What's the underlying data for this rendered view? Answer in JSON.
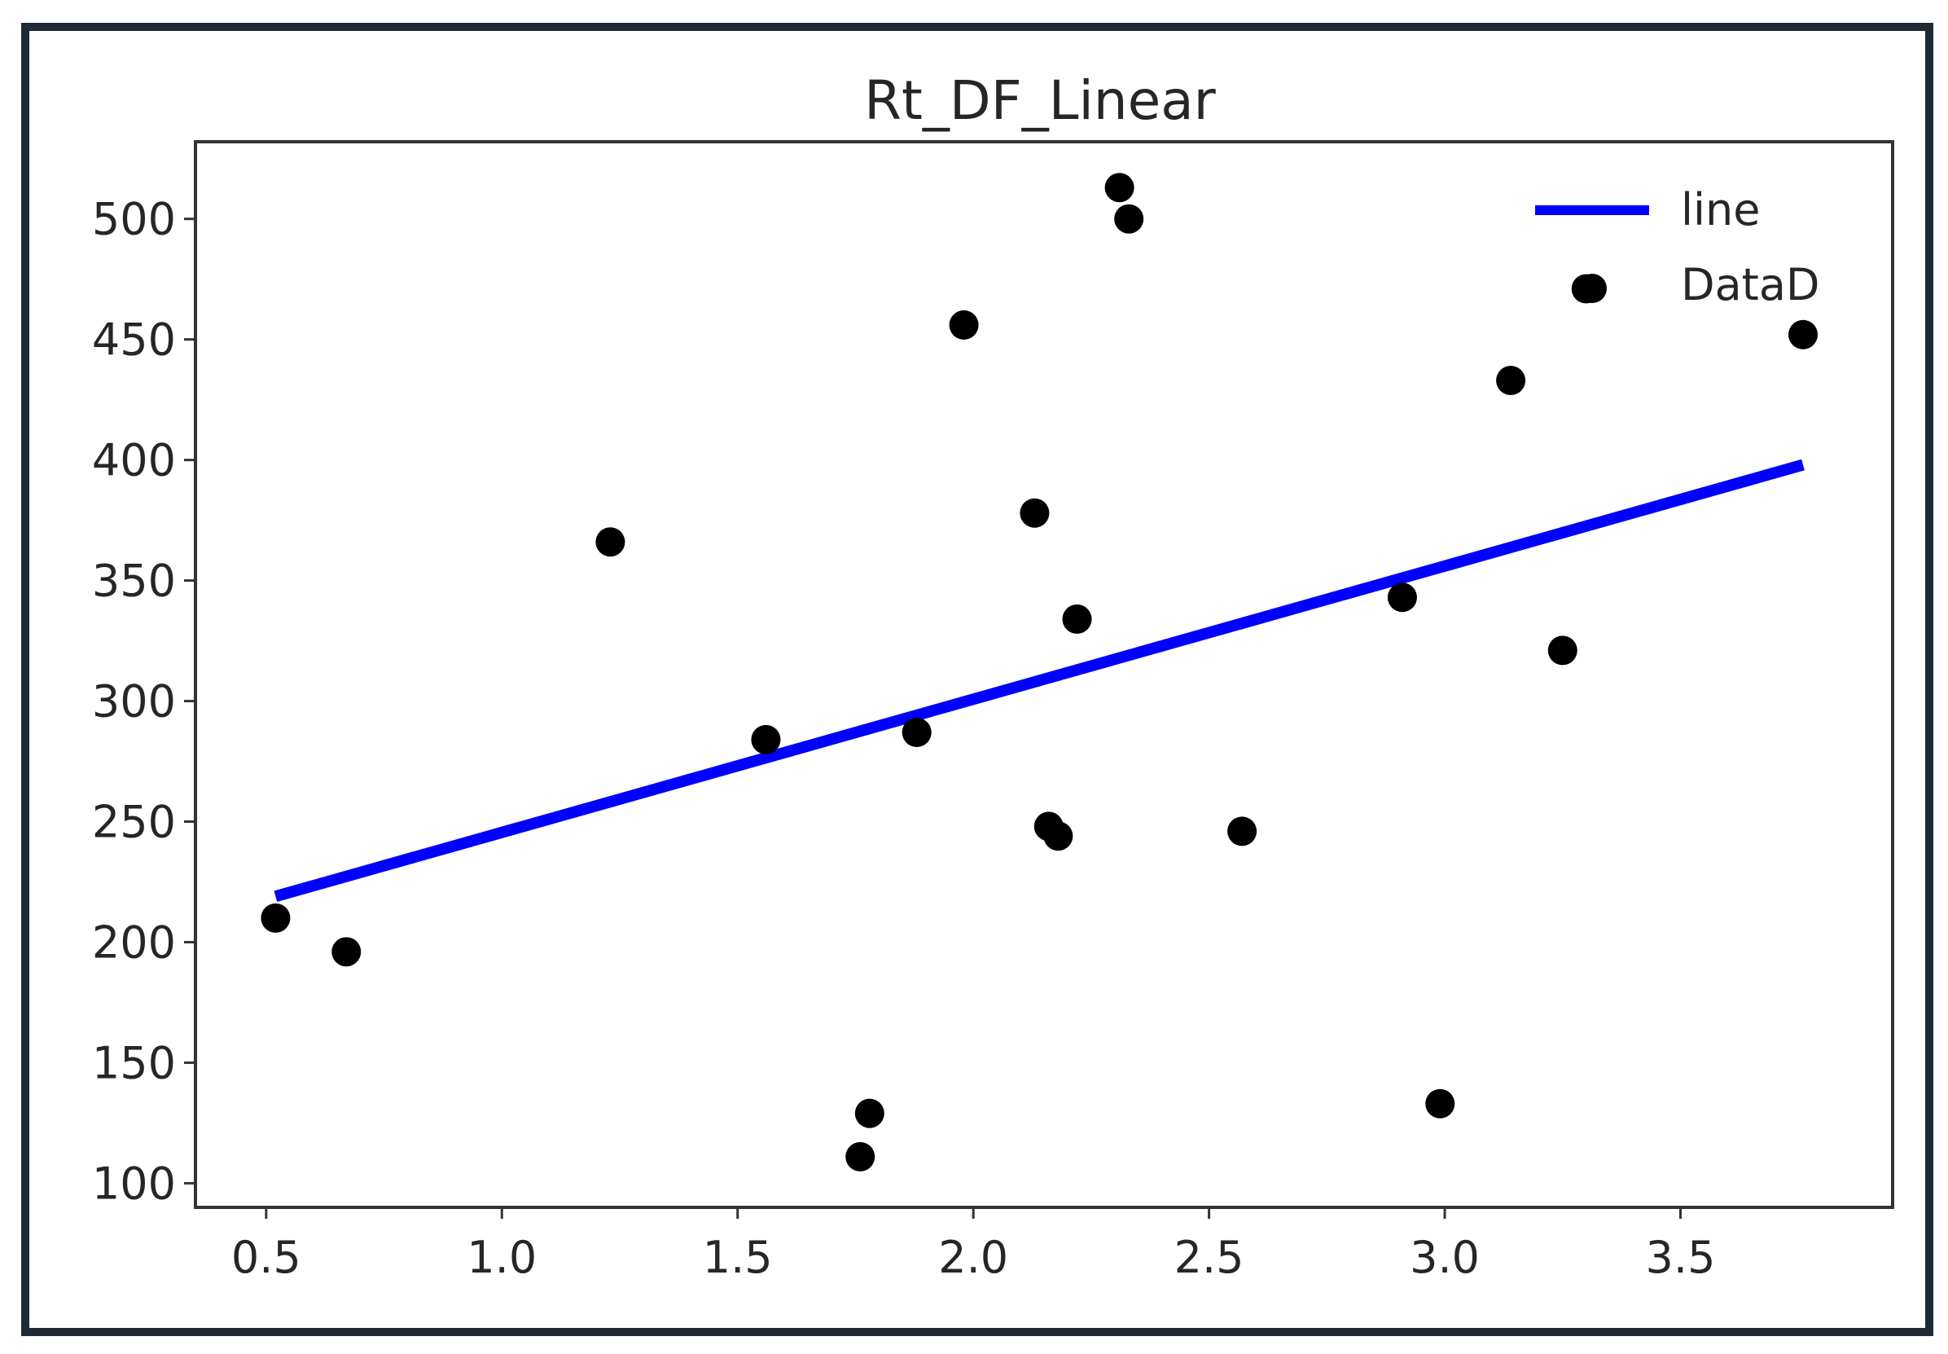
{
  "chart_data": {
    "type": "scatter",
    "title": "Rt_DF_Linear",
    "xlabel": "",
    "ylabel": "",
    "xlim": [
      0.35,
      3.95
    ],
    "ylim": [
      90,
      532
    ],
    "x_ticks": [
      0.5,
      1.0,
      1.5,
      2.0,
      2.5,
      3.0,
      3.5
    ],
    "x_tick_labels": [
      "0.5",
      "1.0",
      "1.5",
      "2.0",
      "2.5",
      "3.0",
      "3.5"
    ],
    "y_ticks": [
      100,
      150,
      200,
      250,
      300,
      350,
      400,
      450,
      500
    ],
    "y_tick_labels": [
      "100",
      "150",
      "200",
      "250",
      "300",
      "350",
      "400",
      "450",
      "500"
    ],
    "grid": false,
    "legend": {
      "placement": "top-right",
      "entries": [
        {
          "label": "line",
          "kind": "line",
          "color": "#0000ff"
        },
        {
          "label": "DataD",
          "kind": "marker",
          "color": "#000000"
        }
      ]
    },
    "series": [
      {
        "name": "line",
        "kind": "line",
        "color": "#0000ff",
        "x": [
          0.52,
          3.76
        ],
        "y": [
          219,
          398
        ]
      },
      {
        "name": "DataD",
        "kind": "scatter",
        "color": "#000000",
        "points": [
          {
            "x": 0.52,
            "y": 210
          },
          {
            "x": 0.67,
            "y": 196
          },
          {
            "x": 1.23,
            "y": 366
          },
          {
            "x": 1.56,
            "y": 284
          },
          {
            "x": 1.76,
            "y": 111
          },
          {
            "x": 1.78,
            "y": 129
          },
          {
            "x": 1.88,
            "y": 287
          },
          {
            "x": 1.98,
            "y": 456
          },
          {
            "x": 2.13,
            "y": 378
          },
          {
            "x": 2.16,
            "y": 248
          },
          {
            "x": 2.18,
            "y": 244
          },
          {
            "x": 2.22,
            "y": 334
          },
          {
            "x": 2.31,
            "y": 513
          },
          {
            "x": 2.33,
            "y": 500
          },
          {
            "x": 2.57,
            "y": 246
          },
          {
            "x": 2.91,
            "y": 343
          },
          {
            "x": 2.99,
            "y": 133
          },
          {
            "x": 3.14,
            "y": 433
          },
          {
            "x": 3.25,
            "y": 321
          },
          {
            "x": 3.3,
            "y": 471
          },
          {
            "x": 3.76,
            "y": 452
          }
        ]
      }
    ]
  }
}
